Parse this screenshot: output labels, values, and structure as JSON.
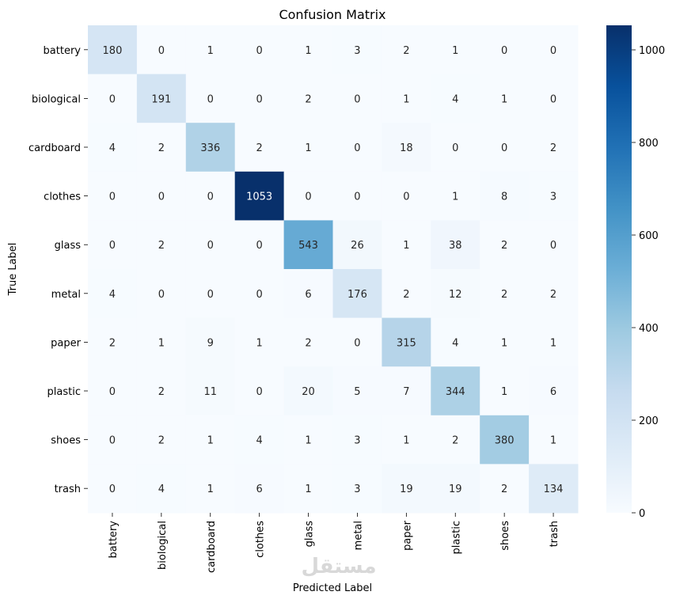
{
  "chart_data": {
    "type": "heatmap",
    "title": "Confusion Matrix",
    "xlabel": "Predicted Label",
    "ylabel": "True Label",
    "x_categories": [
      "battery",
      "biological",
      "cardboard",
      "clothes",
      "glass",
      "metal",
      "paper",
      "plastic",
      "shoes",
      "trash"
    ],
    "y_categories": [
      "battery",
      "biological",
      "cardboard",
      "clothes",
      "glass",
      "metal",
      "paper",
      "plastic",
      "shoes",
      "trash"
    ],
    "values": [
      [
        180,
        0,
        1,
        0,
        1,
        3,
        2,
        1,
        0,
        0
      ],
      [
        0,
        191,
        0,
        0,
        2,
        0,
        1,
        4,
        1,
        0
      ],
      [
        4,
        2,
        336,
        2,
        1,
        0,
        18,
        0,
        0,
        2
      ],
      [
        0,
        0,
        0,
        1053,
        0,
        0,
        0,
        1,
        8,
        3
      ],
      [
        0,
        2,
        0,
        0,
        543,
        26,
        1,
        38,
        2,
        0
      ],
      [
        4,
        0,
        0,
        0,
        6,
        176,
        2,
        12,
        2,
        2
      ],
      [
        2,
        1,
        9,
        1,
        2,
        0,
        315,
        4,
        1,
        1
      ],
      [
        0,
        2,
        11,
        0,
        20,
        5,
        7,
        344,
        1,
        6
      ],
      [
        0,
        2,
        1,
        4,
        1,
        3,
        1,
        2,
        380,
        1
      ],
      [
        0,
        4,
        1,
        6,
        1,
        3,
        19,
        19,
        2,
        134
      ]
    ],
    "colorbar": {
      "range": [
        0,
        1053
      ],
      "ticks": [
        0,
        200,
        400,
        600,
        800,
        1000
      ],
      "colormap": "Blues",
      "low_color": "#f7fbff",
      "high_color": "#08306b"
    },
    "watermark": "مستقل"
  }
}
